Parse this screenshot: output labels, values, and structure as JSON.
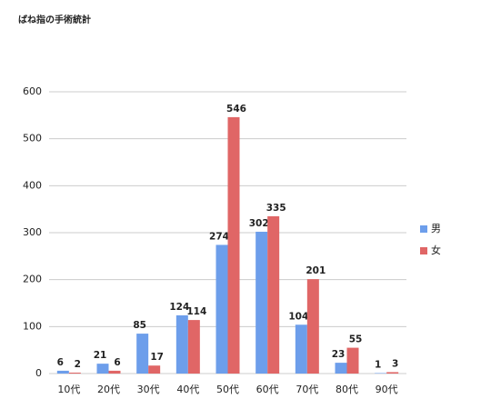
{
  "chart_data": {
    "type": "bar",
    "title": "ばね指の手術統計",
    "categories": [
      "10代",
      "20代",
      "30代",
      "40代",
      "50代",
      "60代",
      "70代",
      "80代",
      "90代"
    ],
    "series": [
      {
        "name": "男",
        "color": "#6d9eeb",
        "values": [
          6,
          21,
          85,
          124,
          274,
          302,
          104,
          23,
          1
        ]
      },
      {
        "name": "女",
        "color": "#e06666",
        "values": [
          2,
          6,
          17,
          114,
          546,
          335,
          201,
          55,
          3
        ]
      }
    ],
    "ylim": [
      0,
      600
    ],
    "yticks": [
      0,
      100,
      200,
      300,
      400,
      500,
      600
    ],
    "grid": true,
    "legend": "right"
  }
}
